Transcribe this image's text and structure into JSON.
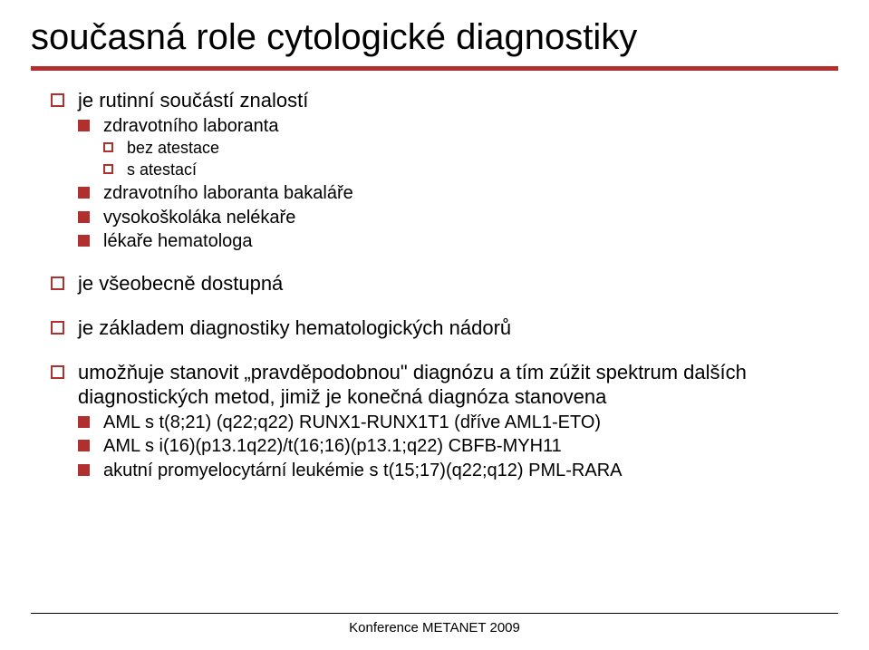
{
  "title": "současná role cytologické diagnostiky",
  "colors": {
    "accent": "#b03030",
    "text": "#000000",
    "background": "#ffffff"
  },
  "typography": {
    "family": "Verdana, Geneva, sans-serif",
    "title_size": 40,
    "l1_size": 22,
    "l2_size": 20,
    "l3_size": 18,
    "footer_size": 15
  },
  "bullets": {
    "b1": {
      "text": "je rutinní součástí znalostí",
      "sub": {
        "s1": {
          "text": "zdravotního laboranta",
          "sub": {
            "t1": "bez atestace",
            "t2": "s atestací"
          }
        },
        "s2": {
          "text": "zdravotního laboranta bakaláře"
        },
        "s3": {
          "text": "vysokoškoláka nelékaře"
        },
        "s4": {
          "text": "lékaře hematologa"
        }
      }
    },
    "b2": {
      "text": "je všeobecně dostupná"
    },
    "b3": {
      "text": "je základem diagnostiky hematologických nádorů"
    },
    "b4": {
      "text": "umožňuje stanovit „pravděpodobnou\" diagnózu a tím zúžit spektrum dalších diagnostických metod, jimiž je konečná diagnóza stanovena",
      "sub": {
        "s1": {
          "text": "AML s t(8;21) (q22;q22) RUNX1-RUNX1T1 (dříve AML1-ETO)"
        },
        "s2": {
          "text": "AML s i(16)(p13.1q22)/t(16;16)(p13.1;q22) CBFB-MYH11"
        },
        "s3": {
          "text": "akutní promyelocytární leukémie s t(15;17)(q22;q12) PML-RARA"
        }
      }
    }
  },
  "footer": "Konference METANET 2009"
}
